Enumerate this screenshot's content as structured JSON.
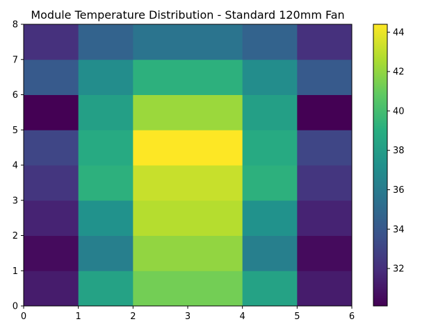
{
  "chart_data": {
    "type": "heatmap",
    "title": "Module Temperature Distribution - Standard 120mm Fan",
    "xlabel": "",
    "ylabel": "",
    "x_edges": [
      0,
      1,
      2,
      3,
      4,
      5,
      6
    ],
    "y_edges": [
      0,
      1,
      2,
      3,
      4,
      5,
      6,
      7,
      8
    ],
    "xlim": [
      0,
      6
    ],
    "ylim": [
      0,
      8
    ],
    "x_ticks": [
      "0",
      "1",
      "2",
      "3",
      "4",
      "5",
      "6"
    ],
    "y_ticks": [
      "0",
      "1",
      "2",
      "3",
      "4",
      "5",
      "6",
      "7",
      "8"
    ],
    "values": [
      [
        31.2,
        38.3,
        41.3,
        41.3,
        38.3,
        31.2
      ],
      [
        30.5,
        36.2,
        42.0,
        42.0,
        36.2,
        30.5
      ],
      [
        31.5,
        37.3,
        42.8,
        42.8,
        37.3,
        31.5
      ],
      [
        32.3,
        39.2,
        43.2,
        43.2,
        39.2,
        32.3
      ],
      [
        33.1,
        38.8,
        44.4,
        44.4,
        38.8,
        33.1
      ],
      [
        30.1,
        38.1,
        42.2,
        42.2,
        38.1,
        30.1
      ],
      [
        34.1,
        37.0,
        39.2,
        39.2,
        37.0,
        34.1
      ],
      [
        32.1,
        34.6,
        35.6,
        35.6,
        34.6,
        32.1
      ]
    ],
    "colorbar": {
      "colormap": "viridis",
      "vmin": 30.1,
      "vmax": 44.4,
      "ticks": [
        "32",
        "34",
        "36",
        "38",
        "40",
        "42",
        "44"
      ]
    },
    "grid": false
  }
}
